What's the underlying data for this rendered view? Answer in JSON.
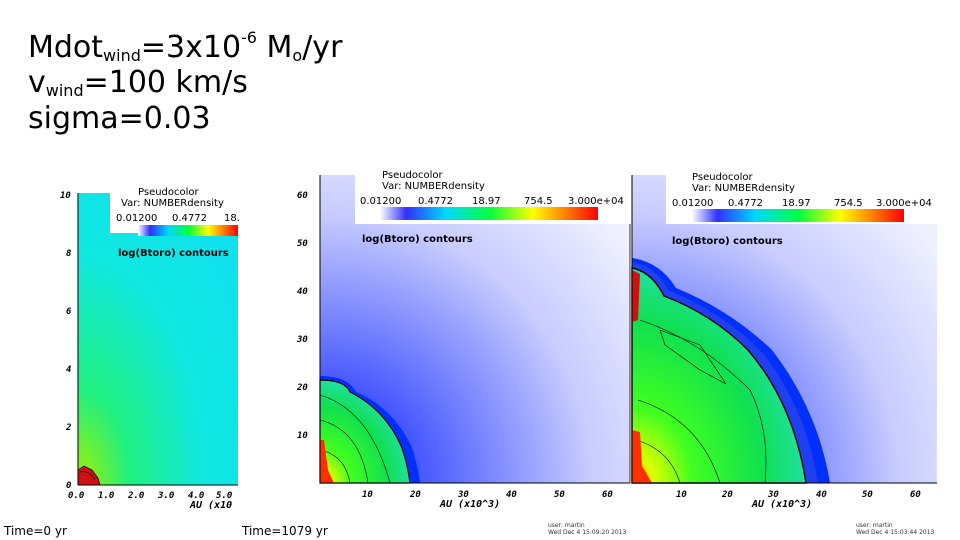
{
  "slide": {
    "line1": {
      "base": "Mdot",
      "sub": "wind",
      "mid": "=3x10",
      "sup": "-6",
      "unit1": " M",
      "unit_sub": "o",
      "unit2": "/yr"
    },
    "line2": {
      "base": "v",
      "sub": "wind",
      "rest": "=100 km/s"
    },
    "line3": "sigma=0.03"
  },
  "legend": {
    "title": "Pseudocolor",
    "var": "Var: NUMBERdensity",
    "ticks": [
      "0.01200",
      "0.4772",
      "18.97",
      "754.5",
      "3.000e+04"
    ],
    "ticks_panel1": [
      "0.01200",
      "0.4772",
      "18."
    ]
  },
  "contour_label": "log(Btoro) contours",
  "panel1": {
    "yticks": [
      "0",
      "2",
      "4",
      "6",
      "8",
      "10"
    ],
    "xticks": [
      "0.0",
      "1.0",
      "2.0",
      "3.0",
      "4.0",
      "5.0"
    ],
    "xaxis_title": "AU (x10",
    "time": "Time=0 yr"
  },
  "panel2": {
    "yticks": [
      "10",
      "20",
      "30",
      "40",
      "50",
      "60"
    ],
    "xticks": [
      "10",
      "20",
      "30",
      "40",
      "50",
      "60"
    ],
    "xaxis_title": "AU (x10^3)",
    "time": "Time=1079 yr",
    "user": "user: martin",
    "date": "Wed Dec  4 15:09:20 2013"
  },
  "panel3": {
    "xticks": [
      "10",
      "20",
      "30",
      "40",
      "50",
      "60"
    ],
    "xaxis_title": "AU (x10^3)",
    "user": "user: martin",
    "date": "Wed Dec  4 15:03:44 2013"
  },
  "colors": {
    "colormap": [
      "#1a00ff",
      "#00e5ff",
      "#00ff00",
      "#ffff00",
      "#ff0000"
    ]
  }
}
